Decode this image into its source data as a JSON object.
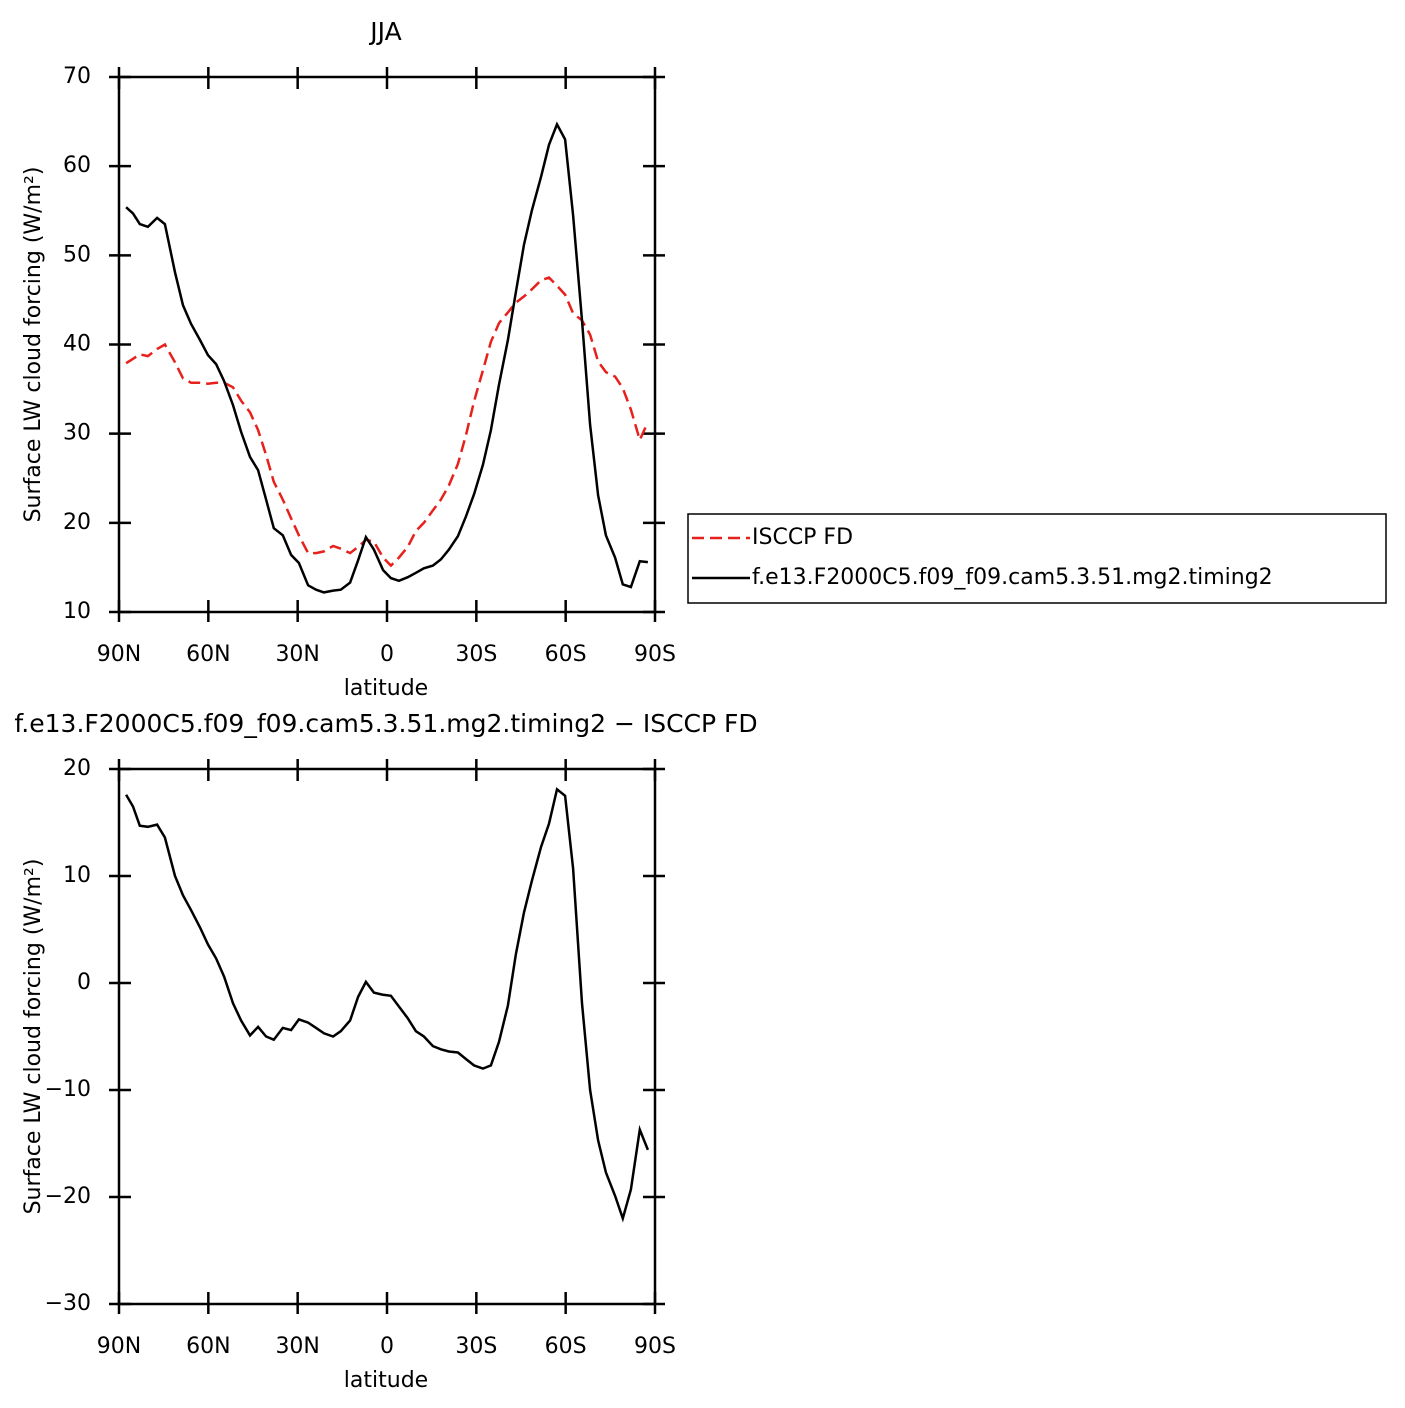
{
  "chart_data": [
    {
      "type": "line",
      "title": "JJA",
      "xlabel": "latitude",
      "ylabel": "Surface LW cloud forcing (W/m²)",
      "x": [
        87.6,
        85.3,
        83.0,
        80.3,
        77.2,
        74.6,
        71.2,
        68.5,
        65.8,
        62.8,
        60.1,
        57.4,
        54.7,
        51.7,
        49.0,
        46.0,
        43.3,
        40.6,
        38.0,
        35.0,
        32.2,
        29.6,
        26.5,
        23.8,
        21.2,
        18.1,
        15.5,
        12.4,
        9.7,
        7.1,
        4.4,
        1.3,
        -1.3,
        -4.0,
        -7.0,
        -9.7,
        -12.4,
        -15.4,
        -18.1,
        -20.8,
        -23.8,
        -26.5,
        -29.2,
        -32.2,
        -34.9,
        -37.6,
        -40.6,
        -43.3,
        -46.0,
        -48.7,
        -51.7,
        -54.4,
        -57.1,
        -59.8,
        -62.5,
        -65.5,
        -68.2,
        -70.9,
        -73.5,
        -76.6,
        -79.2,
        -81.9,
        -84.9,
        -87.6
      ],
      "series": [
        {
          "name": "ISCCP FD",
          "color": "#e8201c",
          "linestyle": "dashed",
          "values": [
            37.9,
            38.4,
            38.9,
            38.7,
            39.5,
            40.0,
            38.0,
            36.2,
            35.7,
            35.7,
            35.6,
            35.7,
            35.7,
            35.2,
            33.7,
            32.4,
            30.4,
            27.6,
            24.6,
            22.6,
            20.5,
            18.6,
            16.6,
            16.6,
            16.8,
            17.4,
            17.1,
            16.6,
            17.3,
            18.1,
            17.9,
            16.1,
            15.2,
            16.1,
            17.3,
            19.1,
            20.0,
            21.4,
            22.6,
            24.2,
            26.6,
            29.8,
            33.6,
            37.1,
            40.3,
            42.4,
            43.6,
            44.7,
            45.4,
            46.2,
            47.2,
            47.5,
            46.6,
            45.6,
            43.5,
            42.7,
            41.1,
            38.1,
            36.9,
            36.4,
            35.1,
            32.7,
            29.3,
            31.3
          ]
        },
        {
          "name": "f.e13.F2000C5.f09_f09.cam5.3.51.mg2.timing2",
          "color": "#000000",
          "linestyle": "solid",
          "values": [
            55.4,
            54.7,
            53.5,
            53.2,
            54.2,
            53.5,
            48.1,
            44.4,
            42.3,
            40.5,
            38.8,
            37.8,
            35.9,
            33.2,
            30.2,
            27.4,
            25.9,
            22.6,
            19.4,
            18.6,
            16.4,
            15.5,
            13.0,
            12.5,
            12.2,
            12.4,
            12.5,
            13.3,
            15.8,
            18.4,
            17.0,
            14.7,
            13.8,
            13.5,
            13.9,
            14.4,
            14.9,
            15.2,
            15.9,
            17.0,
            18.5,
            20.7,
            23.2,
            26.5,
            30.4,
            35.5,
            40.5,
            45.9,
            51.2,
            55.1,
            58.8,
            62.4,
            64.7,
            63.0,
            54.5,
            42.7,
            31.0,
            23.1,
            18.6,
            16.1,
            13.1,
            12.8,
            15.7,
            15.6
          ]
        }
      ],
      "xlim": [
        90,
        -90
      ],
      "xticks": [
        {
          "value": 90,
          "label": "90N"
        },
        {
          "value": 60,
          "label": "60N"
        },
        {
          "value": 30,
          "label": "30N"
        },
        0,
        {
          "value": -30,
          "label": "30S"
        },
        {
          "value": -60,
          "label": "60S"
        },
        {
          "value": -90,
          "label": "90S"
        }
      ],
      "ylim": [
        10,
        70
      ],
      "yticks": [
        10,
        20,
        30,
        40,
        50,
        60,
        70
      ],
      "legend": "right"
    },
    {
      "type": "line",
      "title": "f.e13.F2000C5.f09_f09.cam5.3.51.mg2.timing2 − ISCCP FD",
      "xlabel": "latitude",
      "ylabel": "Surface LW cloud forcing (W/m²)",
      "x": [
        87.6,
        85.3,
        83.0,
        80.3,
        77.2,
        74.6,
        71.2,
        68.5,
        65.8,
        62.8,
        60.1,
        57.4,
        54.7,
        51.7,
        49.0,
        46.0,
        43.3,
        40.6,
        38.0,
        35.0,
        32.2,
        29.6,
        26.5,
        23.8,
        21.2,
        18.1,
        15.5,
        12.4,
        9.7,
        7.1,
        4.4,
        1.3,
        -1.3,
        -4.0,
        -7.0,
        -9.7,
        -12.4,
        -15.4,
        -18.1,
        -20.8,
        -23.8,
        -26.5,
        -29.2,
        -32.2,
        -34.9,
        -37.6,
        -40.6,
        -43.3,
        -46.0,
        -48.7,
        -51.7,
        -54.4,
        -57.1,
        -59.8,
        -62.5,
        -65.5,
        -68.2,
        -70.9,
        -73.5,
        -76.6,
        -79.2,
        -81.9,
        -84.9,
        -87.6
      ],
      "values": [
        17.6,
        16.5,
        14.7,
        14.6,
        14.8,
        13.6,
        10.0,
        8.2,
        6.8,
        5.2,
        3.6,
        2.3,
        0.6,
        -1.9,
        -3.5,
        -4.9,
        -4.1,
        -5.0,
        -5.3,
        -4.2,
        -4.4,
        -3.4,
        -3.7,
        -4.2,
        -4.7,
        -5.0,
        -4.5,
        -3.5,
        -1.3,
        0.1,
        -0.9,
        -1.1,
        -1.2,
        -2.2,
        -3.3,
        -4.5,
        -5.0,
        -5.9,
        -6.2,
        -6.4,
        -6.5,
        -7.1,
        -7.7,
        -8.0,
        -7.7,
        -5.5,
        -2.1,
        2.7,
        6.6,
        9.6,
        12.7,
        14.9,
        18.1,
        17.5,
        10.7,
        -1.9,
        -10.0,
        -14.7,
        -17.7,
        -19.9,
        -22.0,
        -19.3,
        -13.7,
        -15.6
      ],
      "color": "#000000",
      "xlim": [
        90,
        -90
      ],
      "xticks": [
        {
          "value": 90,
          "label": "90N"
        },
        {
          "value": 60,
          "label": "60N"
        },
        {
          "value": 30,
          "label": "30N"
        },
        0,
        {
          "value": -30,
          "label": "30S"
        },
        {
          "value": -60,
          "label": "60S"
        },
        {
          "value": -90,
          "label": "90S"
        }
      ],
      "ylim": [
        -30,
        20
      ],
      "yticks": [
        {
          "value": -30,
          "label": "−30"
        },
        {
          "value": -20,
          "label": "−20"
        },
        {
          "value": -10,
          "label": "−10"
        },
        0,
        10,
        20
      ]
    }
  ]
}
